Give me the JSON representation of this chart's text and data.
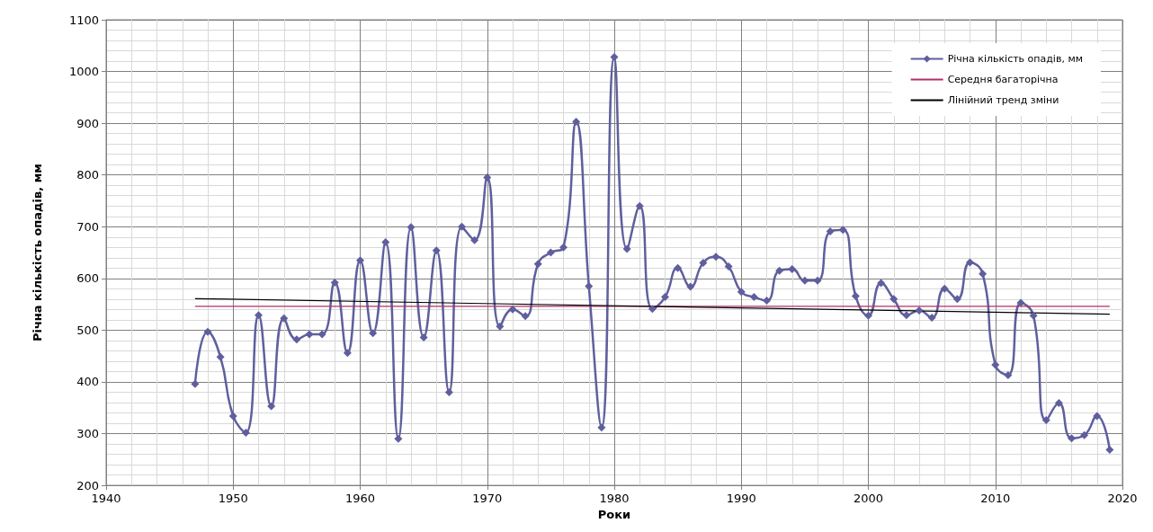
{
  "chart_data": {
    "type": "line",
    "xlabel": "Роки",
    "ylabel": "Річна кількість опадів, мм",
    "xlim": [
      1940,
      2020
    ],
    "xticks": [
      1940,
      1950,
      1960,
      1970,
      1980,
      1990,
      2000,
      2010,
      2020
    ],
    "ylim": [
      200,
      1100
    ],
    "yticks": [
      200,
      300,
      400,
      500,
      600,
      700,
      800,
      900,
      1000,
      1100
    ],
    "grid": true,
    "legend": "top right",
    "series": [
      {
        "name": "Річна кількість опадів, мм",
        "color": "#5f5f9e",
        "marker": "diamond",
        "x": [
          1947,
          1948,
          1949,
          1950,
          1951,
          1952,
          1953,
          1954,
          1955,
          1956,
          1957,
          1958,
          1959,
          1960,
          1961,
          1962,
          1963,
          1964,
          1965,
          1966,
          1967,
          1968,
          1969,
          1970,
          1971,
          1972,
          1973,
          1974,
          1975,
          1976,
          1977,
          1978,
          1979,
          1980,
          1981,
          1982,
          1983,
          1984,
          1985,
          1986,
          1987,
          1988,
          1989,
          1990,
          1991,
          1992,
          1993,
          1994,
          1995,
          1996,
          1997,
          1998,
          1999,
          2000,
          2001,
          2002,
          2003,
          2004,
          2005,
          2006,
          2007,
          2008,
          2009,
          2010,
          2011,
          2012,
          2013,
          2014,
          2015,
          2016,
          2017,
          2018,
          2019
        ],
        "values": [
          396,
          497,
          448,
          334,
          302,
          529,
          353,
          523,
          482,
          492,
          492,
          592,
          456,
          635,
          494,
          670,
          290,
          699,
          486,
          654,
          380,
          700,
          674,
          795,
          507,
          540,
          527,
          628,
          650,
          660,
          903,
          585,
          312,
          1028,
          657,
          740,
          541,
          564,
          620,
          584,
          630,
          642,
          623,
          574,
          564,
          557,
          615,
          618,
          596,
          596,
          691,
          694,
          566,
          528,
          591,
          560,
          529,
          538,
          524,
          580,
          560,
          631,
          609,
          433,
          413,
          553,
          528,
          326,
          359,
          291,
          297,
          334,
          269
        ]
      },
      {
        "name": "Середня багаторічна",
        "color": "#b0306a",
        "marker": "none",
        "x": [
          1947,
          2019
        ],
        "values": [
          546,
          546
        ]
      },
      {
        "name": "Лінійний тренд зміни",
        "color": "#000000",
        "marker": "none",
        "x": [
          1947,
          2019
        ],
        "values": [
          561,
          531
        ]
      }
    ]
  }
}
